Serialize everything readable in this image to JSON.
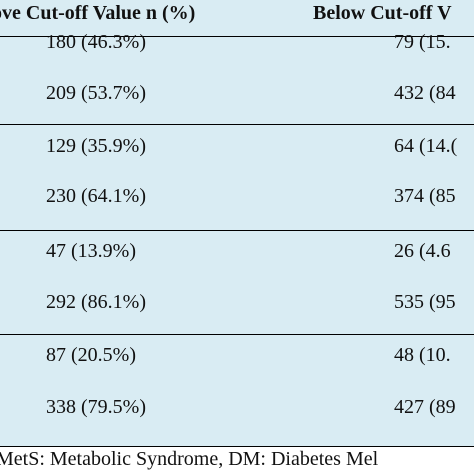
{
  "table": {
    "headers": {
      "above": "ove Cut-off Value n (%)",
      "below": "Below Cut-off V"
    },
    "rows": [
      {
        "above": "180 (46.3%)",
        "below": "79 (15."
      },
      {
        "above": "209 (53.7%)",
        "below": "432 (84"
      },
      {
        "above": "129 (35.9%)",
        "below": "64 (14.("
      },
      {
        "above": "230 (64.1%)",
        "below": "374 (85"
      },
      {
        "above": "47 (13.9%)",
        "below": "26 (4.6"
      },
      {
        "above": "292 (86.1%)",
        "below": "535 (95"
      },
      {
        "above": "87 (20.5%)",
        "below": "48 (10."
      },
      {
        "above": "338 (79.5%)",
        "below": "427 (89"
      }
    ]
  },
  "footer": "MetS: Metabolic Syndrome, DM: Diabetes Mel"
}
